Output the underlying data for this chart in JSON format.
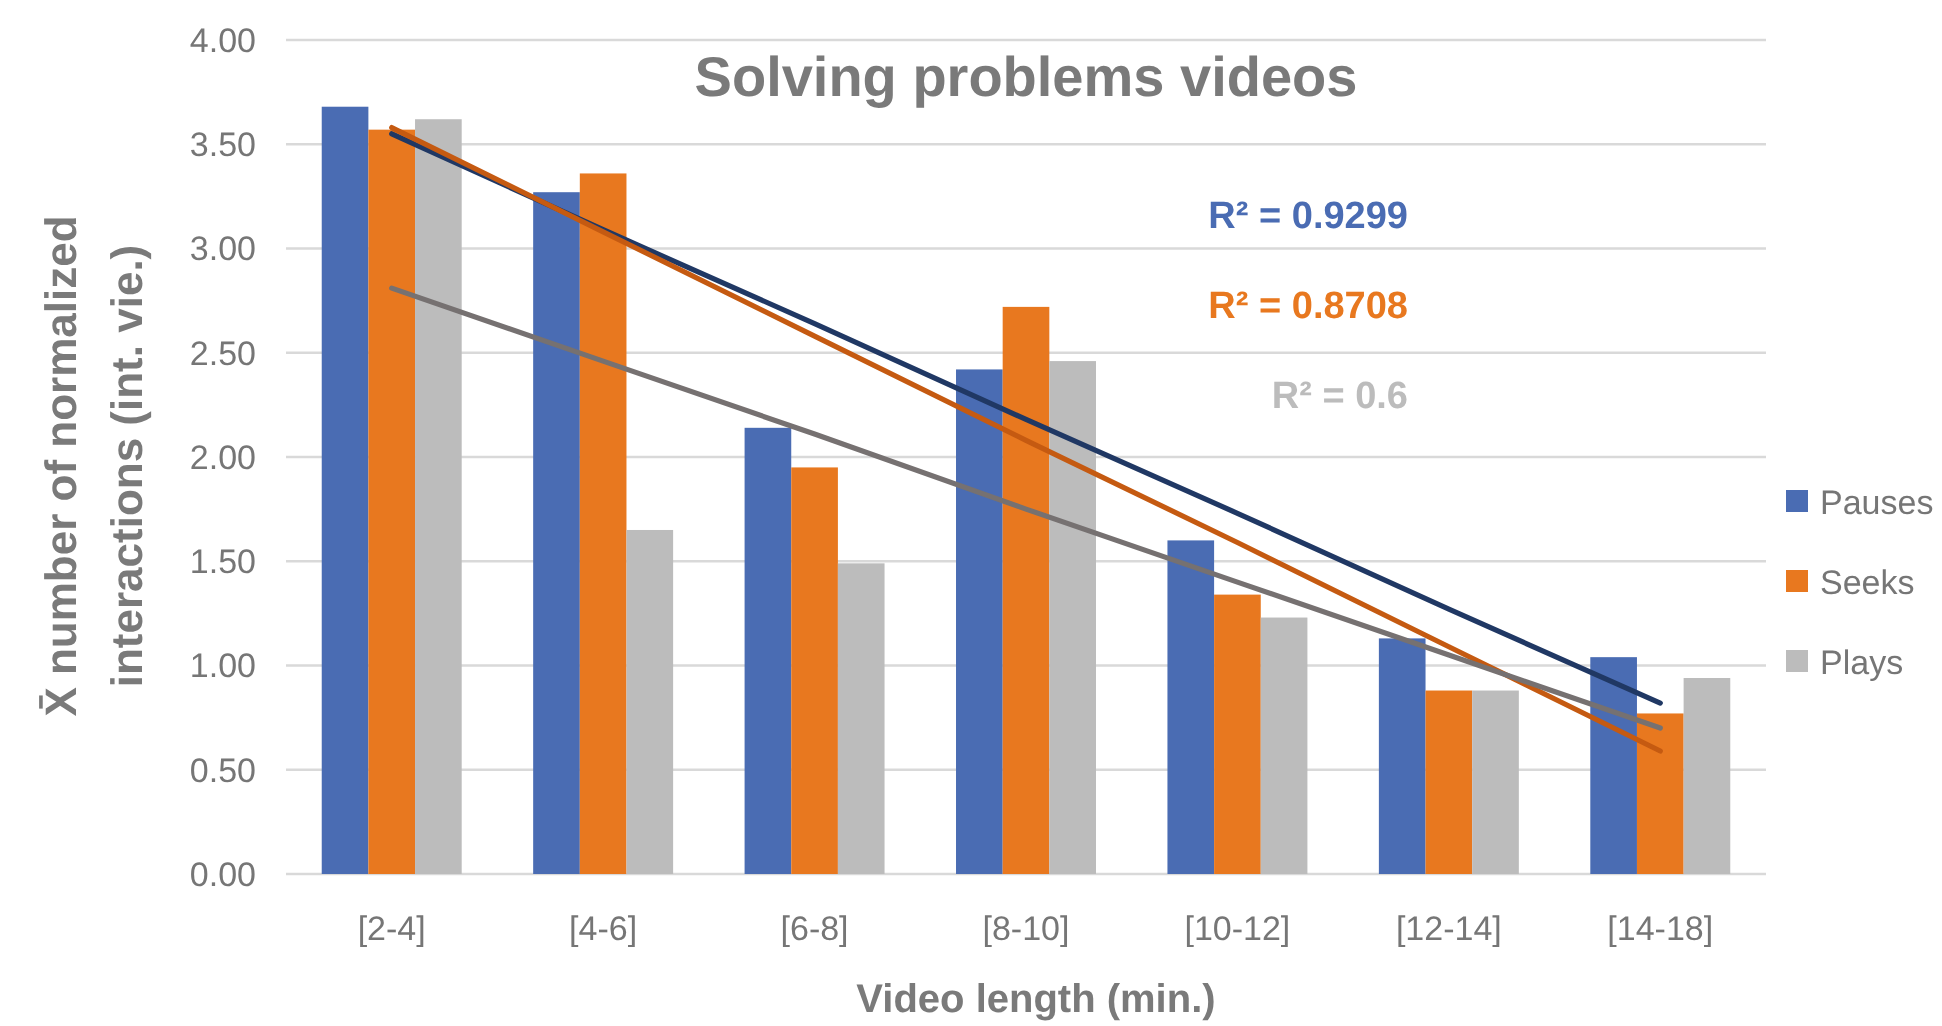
{
  "chart_data": {
    "type": "bar",
    "title": "Solving problems videos",
    "xlabel": "Video length (min.)",
    "ylabel": "X̄ number of normalized interactions (int. vie.)",
    "categories": [
      "[2-4]",
      "[4-6]",
      "[6-8]",
      "[8-10]",
      "[10-12]",
      "[12-14]",
      "[14-18]"
    ],
    "series": [
      {
        "name": "Pauses",
        "color": "#4a6cb3",
        "values": [
          3.68,
          3.27,
          2.14,
          2.42,
          1.6,
          1.13,
          1.04
        ]
      },
      {
        "name": "Seeks",
        "color": "#e8781f",
        "values": [
          3.57,
          3.36,
          1.95,
          2.72,
          1.34,
          0.88,
          0.77
        ]
      },
      {
        "name": "Plays",
        "color": "#bcbcbc",
        "values": [
          3.62,
          1.65,
          1.49,
          2.46,
          1.23,
          0.88,
          0.94
        ]
      },
      {
        "type": "line",
        "color": "#203864",
        "values": [
          3.55,
          3.09,
          2.64,
          2.18,
          1.73,
          1.27,
          0.82
        ]
      },
      {
        "type": "line",
        "color": "#c55a11",
        "values": [
          3.58,
          3.08,
          2.58,
          2.08,
          1.59,
          1.09,
          0.59
        ]
      },
      {
        "type": "line",
        "color": "#767171",
        "values": [
          2.81,
          2.46,
          2.11,
          1.75,
          1.4,
          1.05,
          0.7
        ]
      }
    ],
    "ylim": [
      0,
      4
    ],
    "yticks": [
      {
        "value": 0,
        "label": "0.00"
      },
      {
        "value": 0.5,
        "label": "0.50"
      },
      {
        "value": 1,
        "label": "1.00"
      },
      {
        "value": 1.5,
        "label": "1.50"
      },
      {
        "value": 2,
        "label": "2.00"
      },
      {
        "value": 2.5,
        "label": "2.50"
      },
      {
        "value": 3,
        "label": "3.00"
      },
      {
        "value": 3.5,
        "label": "3.50"
      },
      {
        "value": 4,
        "label": "4.00"
      }
    ],
    "annotations": [
      "R² = 0.9299",
      "R² = 0.8708",
      "R² = 0.6"
    ],
    "grid": "y",
    "legend": "right"
  }
}
